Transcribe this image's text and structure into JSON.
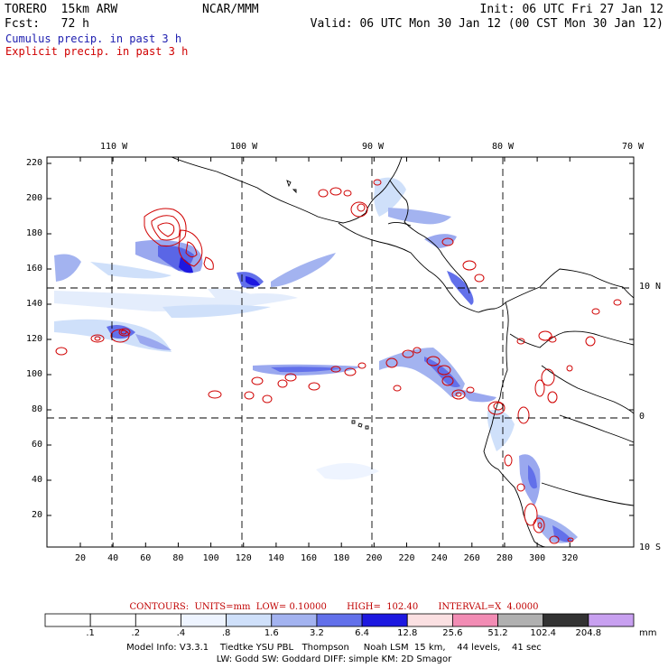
{
  "header": {
    "model": "TORERO  15km ARW",
    "center": "NCAR/MMM",
    "init": "Init: 06 UTC Fri 27 Jan 12",
    "fcst": "Fcst:   72 h",
    "valid": "Valid: 06 UTC Mon 30 Jan 12 (00 CST Mon 30 Jan 12)"
  },
  "legend_lines": {
    "cumulus": "Cumulus precip. in past 3 h",
    "explicit": "Explicit precip. in past 3 h",
    "cumulus_color": "#2020b0",
    "explicit_color": "#d00000"
  },
  "map": {
    "top_lon_labels": [
      "110 W",
      "100 W",
      "90 W",
      "80 W",
      "70 W"
    ],
    "right_lat_labels": [
      "10 N",
      "0",
      "10 S"
    ],
    "y_ticks": [
      "220",
      "200",
      "180",
      "160",
      "140",
      "120",
      "100",
      "80",
      "60",
      "40",
      "20"
    ],
    "x_ticks": [
      "20",
      "40",
      "60",
      "80",
      "100",
      "120",
      "140",
      "160",
      "180",
      "200",
      "220",
      "240",
      "260",
      "280",
      "300",
      "320"
    ]
  },
  "contour_info": "CONTOURS:  UNITS=mm  LOW= 0.10000       HIGH=  102.40       INTERVAL=X  4.0000",
  "colorbar": {
    "labels": [
      ".1",
      ".2",
      ".4",
      ".8",
      "1.6",
      "3.2",
      "6.4",
      "12.8",
      "25.6",
      "51.2",
      "102.4",
      "204.8"
    ],
    "unit": "mm",
    "colors": [
      "#ffffff",
      "#ffffff",
      "#ffffff",
      "#eef4ff",
      "#cfe0fa",
      "#a3b3f0",
      "#6270ea",
      "#1d18e0",
      "#fbe0e2",
      "#f28cb4",
      "#b0b0b0",
      "#333333",
      "#c8a0f0"
    ]
  },
  "footer": {
    "line1": "Model Info: V3.3.1    Tiedtke YSU PBL   Thompson     Noah LSM  15 km,    44 levels,    41 sec",
    "line2": "LW: Godd SW: Goddard DIFF: simple KM: 2D Smagor"
  }
}
